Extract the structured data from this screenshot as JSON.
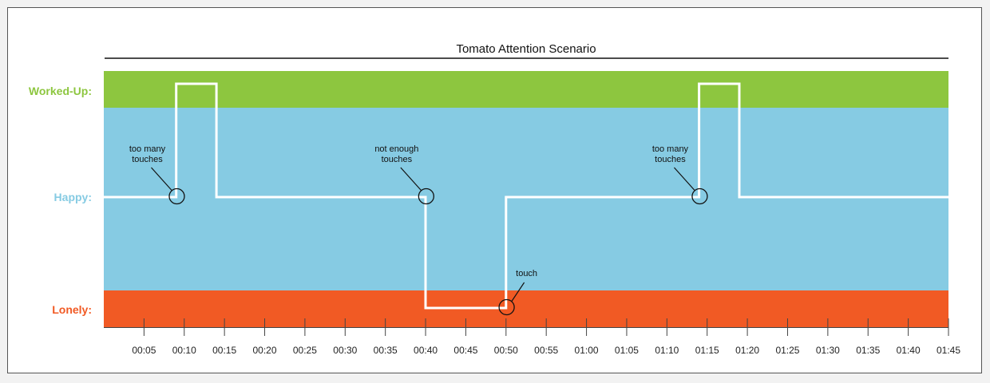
{
  "chart_data": {
    "type": "line",
    "title": "Tomato Attention Scenario",
    "y_states": [
      {
        "label": "Worked-Up:",
        "color": "#8dc63f"
      },
      {
        "label": "Happy:",
        "color": "#86cbe3"
      },
      {
        "label": "Lonely:",
        "color": "#f15a24"
      }
    ],
    "x_ticks": [
      "00:05",
      "00:10",
      "00:15",
      "00:20",
      "00:25",
      "00:30",
      "00:35",
      "00:40",
      "00:45",
      "00:50",
      "00:55",
      "01:00",
      "01:05",
      "01:10",
      "01:15",
      "01:20",
      "01:25",
      "01:30",
      "01:35",
      "01:40",
      "01:45"
    ],
    "xlim_minutes": [
      0,
      105
    ],
    "series": [
      {
        "line_color": "#ffffff",
        "x_minutes": [
          0,
          9,
          9,
          14,
          14,
          40,
          40,
          50,
          50,
          74,
          74,
          79,
          79,
          105
        ],
        "state": [
          "Happy:",
          "Happy:",
          "Worked-Up:",
          "Worked-Up:",
          "Happy:",
          "Happy:",
          "Lonely:",
          "Lonely:",
          "Happy:",
          "Happy:",
          "Worked-Up:",
          "Worked-Up:",
          "Happy:",
          "Happy:"
        ]
      }
    ],
    "annotations": [
      {
        "text": "too many touches",
        "lines": [
          "too many",
          "touches"
        ],
        "x_minutes": 9,
        "state": "Happy:"
      },
      {
        "text": "not enough touches",
        "lines": [
          "not enough",
          "touches"
        ],
        "x_minutes": 40,
        "state": "Happy:"
      },
      {
        "text": "touch",
        "lines": [
          "touch"
        ],
        "x_minutes": 50,
        "state": "Lonely:"
      },
      {
        "text": "too many touches",
        "lines": [
          "too many",
          "touches"
        ],
        "x_minutes": 74,
        "state": "Happy:"
      }
    ]
  }
}
